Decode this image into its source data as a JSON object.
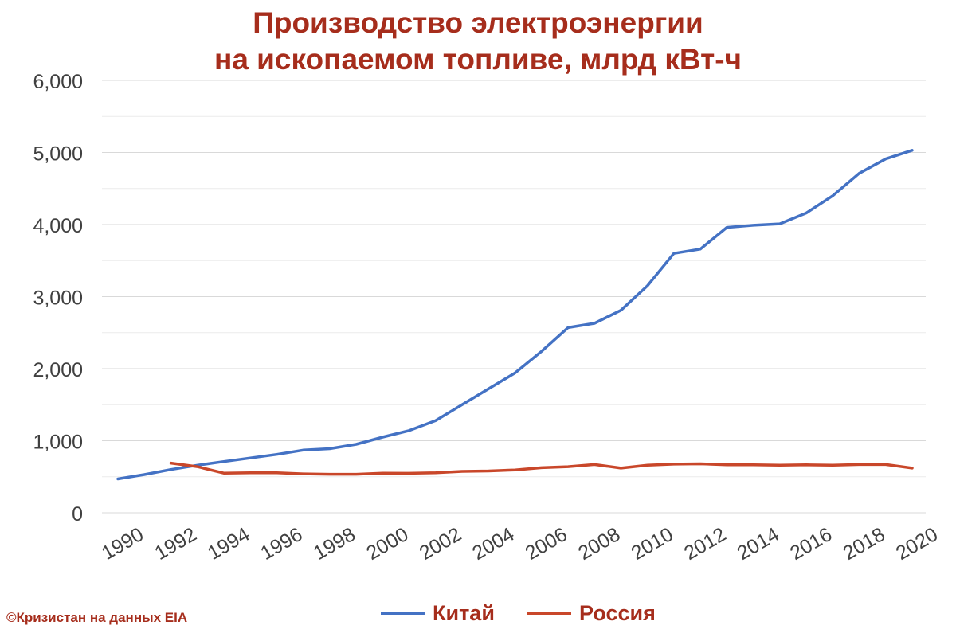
{
  "title_line1": "Производство электроэнергии",
  "title_line2": "на ископаемом топливе, млрд кВт-ч",
  "credit": "©Кризистан на данных EIA",
  "colors": {
    "china": "#4472c4",
    "russia": "#c9472a",
    "text": "#a62d1c",
    "grid": "#d9d9d9",
    "axis_text": "#404040"
  },
  "chart_data": {
    "type": "line",
    "x": [
      1990,
      1991,
      1992,
      1993,
      1994,
      1995,
      1996,
      1997,
      1998,
      1999,
      2000,
      2001,
      2002,
      2003,
      2004,
      2005,
      2006,
      2007,
      2008,
      2009,
      2010,
      2011,
      2012,
      2013,
      2014,
      2015,
      2016,
      2017,
      2018,
      2019,
      2020
    ],
    "ylim": [
      0,
      6000
    ],
    "yticks": [
      "0",
      "1,000",
      "2,000",
      "3,000",
      "4,000",
      "5,000",
      "6,000"
    ],
    "xticks": [
      "1990",
      "1992",
      "1994",
      "1996",
      "1998",
      "2000",
      "2002",
      "2004",
      "2006",
      "2008",
      "2010",
      "2012",
      "2014",
      "2016",
      "2018",
      "2020"
    ],
    "grid": true,
    "legend": "bottom",
    "series": [
      {
        "name": "Китай",
        "color": "#4472c4",
        "values": [
          470,
          530,
          600,
          660,
          710,
          760,
          810,
          870,
          890,
          950,
          1050,
          1140,
          1280,
          1500,
          1720,
          1940,
          2240,
          2570,
          2630,
          2810,
          3150,
          3600,
          3660,
          3960,
          3990,
          4010,
          4160,
          4400,
          4710,
          4910,
          5030
        ]
      },
      {
        "name": "Россия",
        "color": "#c9472a",
        "values": [
          null,
          null,
          690,
          640,
          550,
          555,
          555,
          540,
          535,
          535,
          550,
          548,
          555,
          575,
          580,
          595,
          625,
          640,
          670,
          620,
          660,
          675,
          680,
          665,
          665,
          660,
          665,
          660,
          670,
          670,
          620
        ]
      }
    ]
  }
}
